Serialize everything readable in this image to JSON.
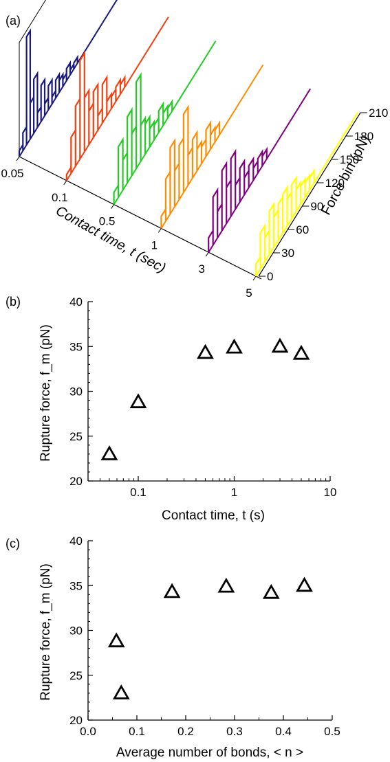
{
  "chart_data": [
    {
      "panel": "(a)",
      "type": "histogram-3d",
      "contact_time_axis": {
        "label": "Contact time, t (sec)",
        "ticks": [
          "0.05",
          "0.1",
          "0.5",
          "1",
          "3",
          "5"
        ]
      },
      "force_axis": {
        "label": "Force bin (pN)",
        "ticks": [
          "0",
          "30",
          "60",
          "90",
          "120",
          "150",
          "180",
          "210"
        ]
      },
      "series": [
        {
          "t": "0.05",
          "color": "#1a1a7e",
          "profile": [
            0.05,
            0.15,
            0.9,
            0.3,
            0.45,
            0.12,
            0.3,
            0.1,
            0.2,
            0.06,
            0.15,
            0.1,
            0.06,
            0.1,
            0.04,
            0.05
          ]
        },
        {
          "t": "0.1",
          "color": "#f04010",
          "profile": [
            0.05,
            0.3,
            0.5,
            0.82,
            0.45,
            0.28,
            0.38,
            0.12,
            0.32,
            0.12,
            0.1,
            0.12,
            0.08
          ]
        },
        {
          "t": "0.5",
          "color": "#22cc22",
          "profile": [
            0.1,
            0.42,
            0.25,
            0.55,
            0.35,
            0.72,
            0.3,
            0.25,
            0.15,
            0.12,
            0.18,
            0.1,
            0.08
          ]
        },
        {
          "t": "1",
          "color": "#ff8c00",
          "profile": [
            0.1,
            0.35,
            0.55,
            0.3,
            0.45,
            0.65,
            0.25,
            0.32,
            0.18,
            0.14,
            0.22,
            0.12,
            0.1
          ]
        },
        {
          "t": "3",
          "color": "#800080",
          "profile": [
            0.12,
            0.4,
            0.22,
            0.5,
            0.3,
            0.48,
            0.2,
            0.28,
            0.14,
            0.18,
            0.1,
            0.12,
            0.08
          ]
        },
        {
          "t": "5",
          "color": "#ffff00",
          "profile": [
            0.1,
            0.3,
            0.2,
            0.36,
            0.25,
            0.3,
            0.32,
            0.22,
            0.28,
            0.18,
            0.15,
            0.12,
            0.1
          ]
        }
      ]
    },
    {
      "panel": "(b)",
      "type": "scatter",
      "xlabel": "Contact time, t (s)",
      "ylabel": "Rupture force, f_m (pN)",
      "x_scale": "log",
      "xlim": [
        0.03,
        10
      ],
      "ylim": [
        20,
        40
      ],
      "xticks": [
        0.1,
        1,
        10
      ],
      "xtick_labels": [
        "0.1",
        "1",
        "10"
      ],
      "yticks": [
        20,
        25,
        30,
        35,
        40
      ],
      "marker": "open-triangle",
      "points": [
        {
          "x": 0.05,
          "y": 23.0
        },
        {
          "x": 0.1,
          "y": 28.8
        },
        {
          "x": 0.5,
          "y": 34.3
        },
        {
          "x": 1,
          "y": 34.9
        },
        {
          "x": 3,
          "y": 35.0
        },
        {
          "x": 5,
          "y": 34.2
        }
      ]
    },
    {
      "panel": "(c)",
      "type": "scatter",
      "xlabel": "Average number of bonds, < n >",
      "ylabel": "Rupture force, f_m (pN)",
      "x_scale": "linear",
      "xlim": [
        0.0,
        0.5
      ],
      "ylim": [
        20,
        40
      ],
      "xticks": [
        0.0,
        0.1,
        0.2,
        0.3,
        0.4,
        0.5
      ],
      "xtick_labels": [
        "0.0",
        "0.1",
        "0.2",
        "0.3",
        "0.4",
        "0.5"
      ],
      "yticks": [
        20,
        25,
        30,
        35,
        40
      ],
      "marker": "open-triangle",
      "points": [
        {
          "x": 0.058,
          "y": 28.8
        },
        {
          "x": 0.068,
          "y": 23.0
        },
        {
          "x": 0.172,
          "y": 34.3
        },
        {
          "x": 0.283,
          "y": 34.9
        },
        {
          "x": 0.375,
          "y": 34.2
        },
        {
          "x": 0.443,
          "y": 35.0
        }
      ]
    }
  ]
}
